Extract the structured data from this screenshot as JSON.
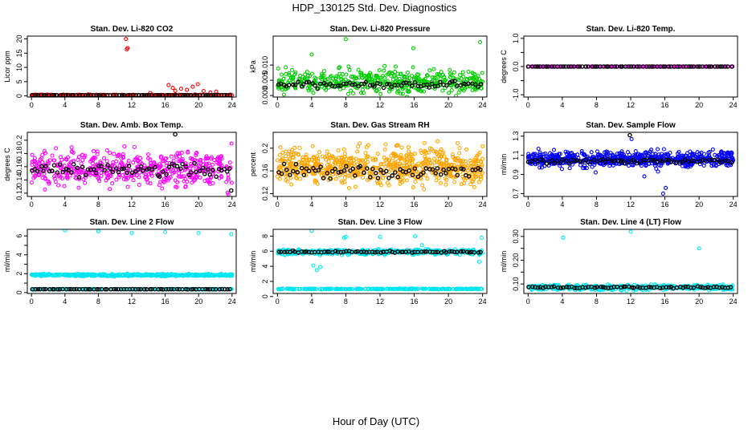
{
  "figure": {
    "title": "HDP_130125  Std. Dev. Diagnostics",
    "xlabel": "Hour of Day (UTC)"
  },
  "chart_data": [
    {
      "type": "scatter",
      "title": "Stan. Dev. Li-820 CO2",
      "ylabel": "Licor ppm",
      "xlim": [
        -0.5,
        24.5
      ],
      "ylim": [
        -0.4,
        21
      ],
      "xticks": [
        0,
        4,
        8,
        12,
        16,
        20,
        24
      ],
      "yticks": [
        0,
        5,
        10,
        15,
        20
      ],
      "series": [
        {
          "color": "#ff0000",
          "style": "dense",
          "base": 0.3,
          "spread": 0.15,
          "n": 200,
          "outliers": [
            [
              11.3,
              20
            ],
            [
              11.4,
              16.3
            ],
            [
              11.5,
              16.8
            ],
            [
              16.4,
              3.8
            ],
            [
              17.2,
              1.8
            ],
            [
              17.9,
              2.5
            ],
            [
              18.6,
              2.1
            ],
            [
              19.3,
              3.2
            ],
            [
              19.9,
              4.1
            ],
            [
              20.6,
              1.7
            ],
            [
              21.4,
              1.2
            ],
            [
              22.1,
              1.5
            ],
            [
              14.2,
              1.0
            ],
            [
              16.9,
              2.8
            ]
          ]
        },
        {
          "color": "#000000",
          "style": "line",
          "base": 0.25,
          "spread": 0.05,
          "n": 72,
          "outliers": []
        }
      ]
    },
    {
      "type": "scatter",
      "title": "Stan. Dev. Li-820 Pressure",
      "ylabel": "kPa",
      "xlim": [
        -0.5,
        24.5
      ],
      "ylim": [
        -0.0005,
        0.0195
      ],
      "xticks": [
        0,
        4,
        8,
        12,
        16,
        20,
        24
      ],
      "yticks": [
        0.0,
        0.005,
        0.01
      ],
      "yticklabels": [
        "0.000",
        "0.005",
        "0.010"
      ],
      "series": [
        {
          "color": "#00cc00",
          "style": "dense",
          "base": 0.0045,
          "spread": 0.004,
          "n": 450,
          "outliers": [
            [
              8.0,
              0.0185
            ],
            [
              23.7,
              0.0175
            ],
            [
              15.9,
              0.0155
            ],
            [
              4.0,
              0.0135
            ]
          ]
        },
        {
          "color": "#000000",
          "style": "line",
          "base": 0.0035,
          "spread": 0.0018,
          "n": 72,
          "outliers": []
        }
      ]
    },
    {
      "type": "scatter",
      "title": "Stan. Dev. Li-820 Temp.",
      "ylabel": "degrees C",
      "xlim": [
        -0.5,
        24.5
      ],
      "ylim": [
        -1.08,
        1.08
      ],
      "xticks": [
        0,
        4,
        8,
        12,
        16,
        20,
        24
      ],
      "yticks": [
        -1.0,
        -0.5,
        0.0,
        0.5,
        1.0
      ],
      "yticklabels": [
        "-1.0",
        "",
        "0.0",
        "",
        "1.0"
      ],
      "series": [
        {
          "color": "#ff00ff",
          "style": "dense",
          "base": 0.0,
          "spread": 0.0,
          "n": 200,
          "outliers": []
        },
        {
          "color": "#000000",
          "style": "line",
          "base": 0.0,
          "spread": 0.0,
          "n": 72,
          "outliers": []
        }
      ]
    },
    {
      "type": "scatter",
      "title": "Stan. Dev. Amb. Box Temp.",
      "ylabel": "degrees C",
      "xlim": [
        -0.5,
        24.5
      ],
      "ylim": [
        0.115,
        0.212
      ],
      "xticks": [
        0,
        4,
        8,
        12,
        16,
        20,
        24
      ],
      "yticks": [
        0.12,
        0.14,
        0.16,
        0.18,
        0.2
      ],
      "series": [
        {
          "color": "#ff00ff",
          "style": "dense",
          "base": 0.157,
          "spread": 0.028,
          "n": 520,
          "outliers": []
        },
        {
          "color": "#000000",
          "style": "line",
          "base": 0.155,
          "spread": 0.018,
          "n": 72,
          "outliers": [
            [
              17.2,
              0.209
            ],
            [
              23.9,
              0.124
            ]
          ]
        }
      ]
    },
    {
      "type": "scatter",
      "title": "Stan. Dev. Gas Stream RH",
      "ylabel": "percent",
      "xlim": [
        -0.5,
        24.5
      ],
      "ylim": [
        0.115,
        0.228
      ],
      "xticks": [
        0,
        4,
        8,
        12,
        16,
        20,
        24
      ],
      "yticks": [
        0.12,
        0.16,
        0.2
      ],
      "series": [
        {
          "color": "#ffa500",
          "style": "dense",
          "base": 0.168,
          "spread": 0.032,
          "n": 700,
          "outliers": []
        },
        {
          "color": "#000000",
          "style": "line",
          "base": 0.16,
          "spread": 0.02,
          "n": 72,
          "outliers": []
        }
      ]
    },
    {
      "type": "scatter",
      "title": "Stan. Dev. Sample Flow",
      "ylabel": "ml/min",
      "xlim": [
        -0.5,
        24.5
      ],
      "ylim": [
        0.67,
        1.34
      ],
      "xticks": [
        0,
        4,
        8,
        12,
        16,
        20,
        24
      ],
      "yticks": [
        0.7,
        0.9,
        1.1,
        1.3
      ],
      "series": [
        {
          "color": "#0000ff",
          "style": "dense",
          "base": 1.06,
          "spread": 0.08,
          "n": 700,
          "outliers": [
            [
              15.8,
              0.7
            ],
            [
              16.1,
              0.76
            ],
            [
              13.6,
              0.88
            ],
            [
              15.2,
              0.93
            ],
            [
              7.9,
              0.92
            ],
            [
              12.1,
              1.27
            ]
          ]
        },
        {
          "color": "#000000",
          "style": "line",
          "base": 1.04,
          "spread": 0.04,
          "n": 72,
          "outliers": [
            [
              11.9,
              1.31
            ]
          ]
        }
      ]
    },
    {
      "type": "scatter",
      "title": "Stan. Dev. Line 2 Flow",
      "ylabel": "ml/min",
      "xlim": [
        -0.5,
        24.5
      ],
      "ylim": [
        -0.1,
        6.7
      ],
      "xticks": [
        0,
        4,
        8,
        12,
        16,
        20,
        24
      ],
      "yticks": [
        0,
        1,
        2,
        3,
        4,
        5,
        6
      ],
      "yticklabels": [
        "0",
        "",
        "2",
        "",
        "4",
        "",
        "6"
      ],
      "series": [
        {
          "color": "#00e5ee",
          "style": "dense",
          "base": 1.85,
          "spread": 0.12,
          "n": 420,
          "outliers": [
            [
              4.0,
              6.6
            ],
            [
              8.0,
              6.5
            ],
            [
              12.0,
              6.3
            ],
            [
              16.0,
              6.4
            ],
            [
              20.0,
              6.3
            ],
            [
              23.9,
              6.2
            ]
          ]
        },
        {
          "color": "#00e5ee",
          "style": "dense",
          "base": 0.35,
          "spread": 0.04,
          "n": 200,
          "outliers": []
        },
        {
          "color": "#000000",
          "style": "line",
          "base": 0.35,
          "spread": 0.02,
          "n": 72,
          "outliers": []
        }
      ]
    },
    {
      "type": "scatter",
      "title": "Stan. Dev. Line 3 Flow",
      "ylabel": "ml/min",
      "xlim": [
        -0.5,
        24.5
      ],
      "ylim": [
        0.4,
        8.9
      ],
      "xticks": [
        0,
        4,
        8,
        12,
        16,
        20,
        24
      ],
      "yticks": [
        0,
        2,
        4,
        6,
        8
      ],
      "series": [
        {
          "color": "#00e5ee",
          "style": "dense",
          "base": 5.9,
          "spread": 0.35,
          "n": 450,
          "outliers": [
            [
              4.0,
              8.7
            ],
            [
              4.2,
              4.1
            ],
            [
              4.6,
              3.5
            ],
            [
              5.0,
              3.9
            ],
            [
              7.8,
              7.8
            ],
            [
              8.0,
              7.9
            ],
            [
              12.0,
              7.9
            ],
            [
              16.1,
              8.0
            ],
            [
              16.9,
              6.8
            ],
            [
              23.9,
              7.8
            ],
            [
              23.6,
              4.6
            ]
          ]
        },
        {
          "color": "#00e5ee",
          "style": "dense",
          "base": 1.0,
          "spread": 0.05,
          "n": 250,
          "outliers": []
        },
        {
          "color": "#000000",
          "style": "line",
          "base": 5.9,
          "spread": 0.2,
          "n": 72,
          "outliers": []
        }
      ]
    },
    {
      "type": "scatter",
      "title": "Stan. Dev. Line 4 (LT) Flow",
      "ylabel": "ml/min",
      "xlim": [
        -0.5,
        24.5
      ],
      "ylim": [
        0.06,
        0.33
      ],
      "xticks": [
        0,
        4,
        8,
        12,
        16,
        20,
        24
      ],
      "yticks": [
        0.1,
        0.15,
        0.2,
        0.25,
        0.3
      ],
      "yticklabels": [
        "0.10",
        "",
        "0.20",
        "",
        "0.30"
      ],
      "series": [
        {
          "color": "#00e5ee",
          "style": "dense",
          "base": 0.085,
          "spread": 0.012,
          "n": 450,
          "outliers": [
            [
              4.1,
              0.295
            ],
            [
              12.0,
              0.32
            ],
            [
              20.0,
              0.25
            ]
          ]
        },
        {
          "color": "#000000",
          "style": "line",
          "base": 0.086,
          "spread": 0.006,
          "n": 72,
          "outliers": []
        }
      ]
    }
  ]
}
